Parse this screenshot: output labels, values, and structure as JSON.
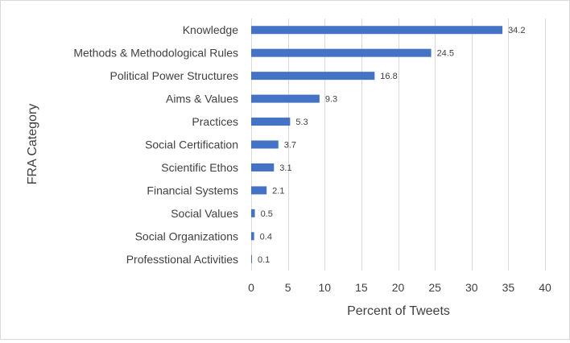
{
  "chart_data": {
    "type": "bar",
    "orientation": "horizontal",
    "categories": [
      "Knowledge",
      "Methods & Methodological Rules",
      "Political Power Structures",
      "Aims & Values",
      "Practices",
      "Social Certification",
      "Scientific Ethos",
      "Financial Systems",
      "Social Values",
      "Social Organizations",
      "Professtional Activities"
    ],
    "values": [
      34.2,
      24.5,
      16.8,
      9.3,
      5.3,
      3.7,
      3.1,
      2.1,
      0.5,
      0.4,
      0.1
    ],
    "data_labels": [
      "34.2",
      "24.5",
      "16.8",
      "9.3",
      "5.3",
      "3.7",
      "3.1",
      "2.1",
      "0.5",
      "0.4",
      "0.1"
    ],
    "xlabel": "Percent of Tweets",
    "ylabel": "FRA Category",
    "xlim": [
      0,
      40
    ],
    "xticks": [
      0,
      5,
      10,
      15,
      20,
      25,
      30,
      35,
      40
    ],
    "grid": "vertical",
    "legend": "none",
    "bar_color": "#4472c4"
  }
}
